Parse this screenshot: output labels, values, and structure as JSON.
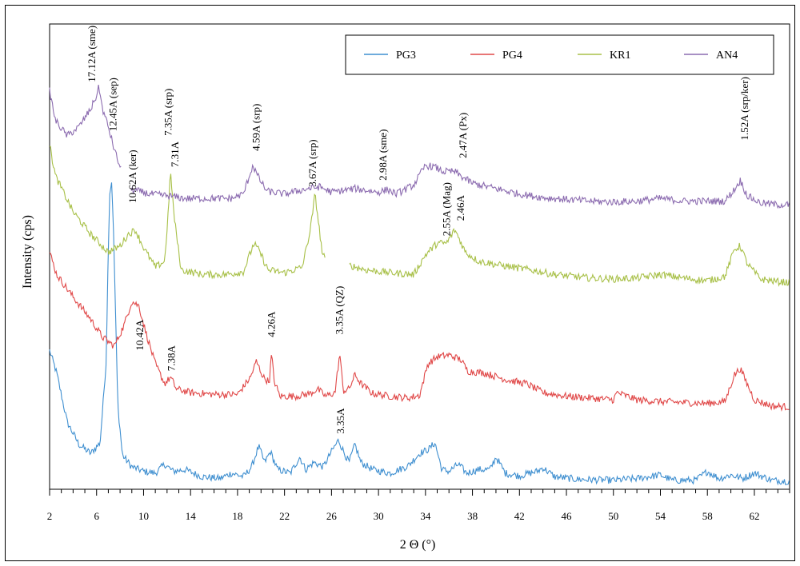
{
  "chart_data": {
    "type": "line",
    "title": "",
    "xlabel": "2 Θ (°)",
    "ylabel": "Intensity (cps)",
    "xlim": [
      2,
      65
    ],
    "x_ticks": [
      2,
      6,
      10,
      14,
      18,
      22,
      26,
      30,
      34,
      38,
      42,
      46,
      50,
      54,
      58,
      62
    ],
    "y_ticks": [],
    "grid": false,
    "legend_position": "top-right",
    "series": [
      {
        "name": "PG3",
        "color": "#3f8fd0",
        "x": [
          2,
          2.6,
          3.5,
          4.5,
          5.5,
          6.3,
          6.8,
          7.1,
          7.3,
          7.5,
          7.8,
          8.2,
          9,
          10,
          11,
          11.8,
          12.5,
          13.5,
          15,
          16.5,
          17.5,
          18.5,
          19.2,
          19.8,
          20.3,
          20.8,
          21.4,
          22.5,
          23.3,
          23.8,
          24.5,
          25.3,
          26,
          26.6,
          27.1,
          27.5,
          28,
          28.5,
          29.5,
          31,
          32.5,
          33.5,
          34.3,
          34.8,
          35.4,
          36,
          36.8,
          37.5,
          38.5,
          39.5,
          40,
          40.8,
          42,
          43.5,
          44,
          45,
          47,
          50,
          52,
          54,
          55,
          57,
          58,
          59,
          60,
          61,
          62,
          63.5,
          65
        ],
        "y": [
          155,
          130,
          75,
          50,
          40,
          52,
          140,
          330,
          345,
          260,
          95,
          38,
          25,
          20,
          18,
          28,
          20,
          22,
          14,
          12,
          18,
          14,
          25,
          48,
          30,
          42,
          22,
          18,
          36,
          22,
          30,
          25,
          42,
          55,
          40,
          30,
          50,
          30,
          22,
          18,
          26,
          40,
          45,
          52,
          22,
          20,
          28,
          18,
          22,
          22,
          36,
          18,
          15,
          20,
          24,
          14,
          11,
          10,
          12,
          16,
          10,
          10,
          20,
          12,
          16,
          12,
          18,
          10,
          9
        ]
      },
      {
        "name": "PG4",
        "color": "#e04848",
        "x": [
          2,
          2.6,
          4,
          5.5,
          6.5,
          7.5,
          8.3,
          9,
          9.6,
          10.2,
          11,
          11.8,
          12.3,
          12.8,
          14,
          16,
          18,
          19.1,
          19.6,
          20.2,
          20.7,
          20.9,
          21.1,
          21.6,
          23,
          24.2,
          24.8,
          25.5,
          26.3,
          26.7,
          27,
          27.5,
          28,
          28.5,
          29.5,
          31,
          32.5,
          33.5,
          34.2,
          35,
          36,
          37,
          37.6,
          39,
          41,
          42.6,
          44,
          46,
          48,
          50,
          50.3,
          52,
          54,
          56,
          58,
          59.5,
          60.3,
          60.8,
          61.3,
          62,
          63.5,
          65
        ],
        "y": [
          265,
          240,
          215,
          190,
          170,
          160,
          182,
          210,
          205,
          175,
          140,
          118,
          125,
          112,
          108,
          106,
          106,
          125,
          143,
          125,
          120,
          152,
          122,
          104,
          104,
          107,
          112,
          104,
          108,
          152,
          110,
          112,
          128,
          118,
          107,
          104,
          102,
          105,
          140,
          148,
          150,
          145,
          132,
          130,
          122,
          118,
          108,
          104,
          102,
          100,
          108,
          100,
          98,
          97,
          96,
          98,
          128,
          135,
          120,
          100,
          93,
          92
        ]
      },
      {
        "name": "KR1",
        "color": "#a8c048",
        "x": [
          2,
          2.5,
          4,
          5.5,
          7,
          8,
          8.7,
          9.3,
          10,
          11,
          11.8,
          12.1,
          12.3,
          12.6,
          13.2,
          15,
          17,
          18.5,
          19.4,
          19.9,
          20.6,
          22,
          23.5,
          24.2,
          24.6,
          25.2,
          26,
          27.6,
          29,
          31,
          33,
          34,
          35,
          35.8,
          36.5,
          36.8,
          37.4,
          38.5,
          40.5,
          43,
          45,
          48,
          50,
          52,
          54,
          56,
          58,
          59.5,
          60.3,
          60.8,
          61.4,
          62.5,
          64,
          65
        ],
        "y": [
          385,
          350,
          310,
          285,
          265,
          272,
          285,
          290,
          270,
          248,
          255,
          310,
          355,
          305,
          245,
          240,
          240,
          243,
          275,
          265,
          245,
          242,
          248,
          290,
          330,
          265,
          238,
          250,
          245,
          242,
          240,
          262,
          275,
          275,
          290,
          282,
          265,
          255,
          250,
          245,
          240,
          236,
          235,
          236,
          240,
          236,
          233,
          238,
          268,
          272,
          252,
          235,
          232,
          231
        ],
        "gaps": [
          [
            25.5,
            27.5
          ]
        ]
      },
      {
        "name": "AN4",
        "color": "#8c6cb0",
        "x": [
          2,
          2.5,
          3.5,
          4.5,
          5.5,
          6,
          6.2,
          6.5,
          7,
          7.5,
          8,
          8.5,
          9,
          10.5,
          12,
          13.5,
          15.5,
          17.5,
          18.5,
          19.3,
          19.8,
          20.5,
          22,
          24,
          25,
          26,
          28,
          30,
          30.8,
          31.5,
          33,
          34,
          34.8,
          35.5,
          36.5,
          37,
          38,
          40,
          42,
          44,
          46,
          48,
          50,
          52,
          54,
          56,
          58,
          59.5,
          60.3,
          60.8,
          61.4,
          62.5,
          64,
          65
        ],
        "y": [
          445,
          412,
          395,
          405,
          425,
          440,
          450,
          425,
          405,
          380,
          360,
          342,
          335,
          330,
          328,
          325,
          325,
          325,
          330,
          362,
          348,
          333,
          330,
          336,
          338,
          332,
          336,
          332,
          335,
          330,
          340,
          362,
          360,
          355,
          355,
          350,
          342,
          336,
          330,
          326,
          324,
          322,
          321,
          322,
          325,
          322,
          322,
          322,
          335,
          345,
          328,
          320,
          318,
          318
        ],
        "gaps": [
          [
            8.1,
            8.9
          ]
        ]
      }
    ],
    "annotations": [
      {
        "text": "17.12A (sme)",
        "x": 5.6,
        "y": 455
      },
      {
        "text": "12.45A (sep)",
        "x": 7.4,
        "y": 400
      },
      {
        "text": "10.62A (ker)",
        "x": 9.1,
        "y": 320
      },
      {
        "text": "7.35A (srp)",
        "x": 12.1,
        "y": 395
      },
      {
        "text": "7.31A",
        "x": 12.7,
        "y": 360
      },
      {
        "text": "4.59A (srp)",
        "x": 19.6,
        "y": 378
      },
      {
        "text": "3.67A (srp)",
        "x": 24.4,
        "y": 338
      },
      {
        "text": "2.98A (sme)",
        "x": 30.4,
        "y": 345
      },
      {
        "text": "2.47A (Px)",
        "x": 37.2,
        "y": 370
      },
      {
        "text": "1.52A (srp/ker)",
        "x": 61.2,
        "y": 390
      },
      {
        "text": "2.55A (Mag)",
        "x": 35.8,
        "y": 283
      },
      {
        "text": "2.46A",
        "x": 37.0,
        "y": 300
      },
      {
        "text": "10.42A",
        "x": 9.7,
        "y": 155
      },
      {
        "text": "7.38A",
        "x": 12.4,
        "y": 132
      },
      {
        "text": "4.26A",
        "x": 20.9,
        "y": 170
      },
      {
        "text": "3.35A (QZ)",
        "x": 26.7,
        "y": 173
      },
      {
        "text": "3.35A",
        "x": 26.8,
        "y": 62
      }
    ]
  }
}
